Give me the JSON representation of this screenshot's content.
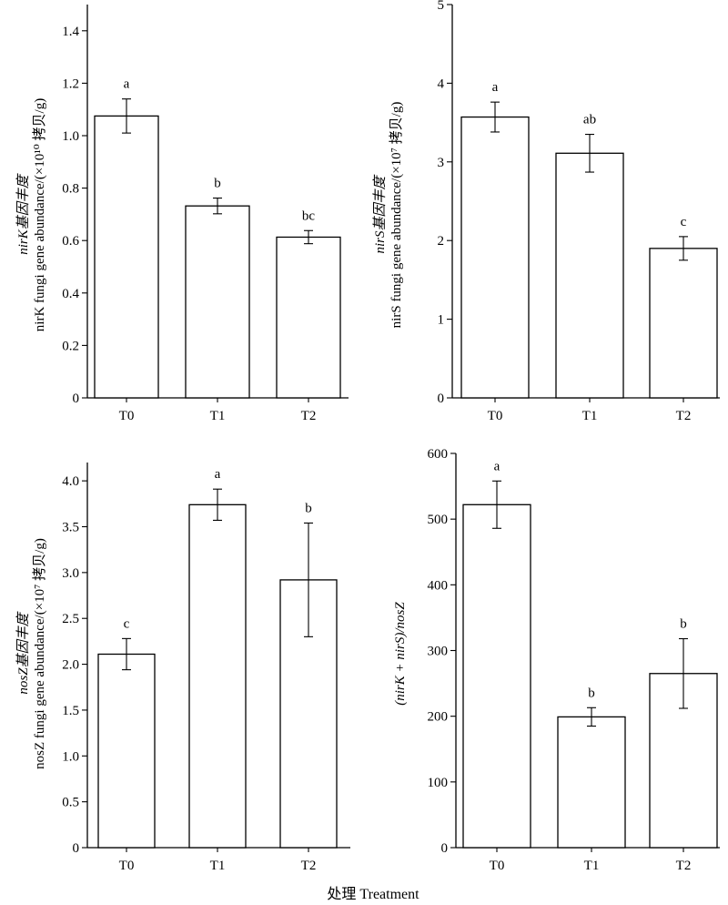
{
  "xlabel": "处理 Treatment",
  "colors": {
    "bar_fill": "#ffffff",
    "stroke": "#000000"
  },
  "chart_data": [
    {
      "type": "bar",
      "ylabel_cn": "nirK基因丰度",
      "ylabel_en": "nirK fungi gene abundance/(×10¹⁰ 拷贝/g)",
      "categories": [
        "T0",
        "T1",
        "T2"
      ],
      "values": [
        1.075,
        0.732,
        0.613
      ],
      "errors": [
        0.065,
        0.03,
        0.025
      ],
      "significance": [
        "a",
        "b",
        "bc"
      ],
      "ylim": [
        0,
        1.5
      ],
      "yticks": [
        "0",
        "0.2",
        "0.4",
        "0.6",
        "0.8",
        "1.0",
        "1.2",
        "1.4"
      ],
      "ytick_values": [
        0,
        0.2,
        0.4,
        0.6,
        0.8,
        1.0,
        1.2,
        1.4
      ],
      "grid": false
    },
    {
      "type": "bar",
      "ylabel_cn": "nirS基因丰度",
      "ylabel_en": "nirS fungi gene abundance/(×10⁷ 拷贝/g)",
      "categories": [
        "T0",
        "T1",
        "T2"
      ],
      "values": [
        3.57,
        3.11,
        1.9
      ],
      "errors": [
        0.19,
        0.24,
        0.15
      ],
      "significance": [
        "a",
        "ab",
        "c"
      ],
      "ylim": [
        0,
        5
      ],
      "yticks": [
        "0",
        "1",
        "2",
        "3",
        "4",
        "5"
      ],
      "ytick_values": [
        0,
        1,
        2,
        3,
        4,
        5
      ],
      "grid": false
    },
    {
      "type": "bar",
      "ylabel_cn": "nosZ基因丰度",
      "ylabel_en": "nosZ fungi gene abundance/(×10⁷ 拷贝/g)",
      "categories": [
        "T0",
        "T1",
        "T2"
      ],
      "values": [
        2.11,
        3.74,
        2.92
      ],
      "errors": [
        0.17,
        0.17,
        0.62
      ],
      "significance": [
        "c",
        "a",
        "b"
      ],
      "ylim": [
        0,
        4.2
      ],
      "yticks": [
        "0",
        "0.5",
        "1.0",
        "1.5",
        "2.0",
        "2.5",
        "3.0",
        "3.5",
        "4.0"
      ],
      "ytick_values": [
        0,
        0.5,
        1.0,
        1.5,
        2.0,
        2.5,
        3.0,
        3.5,
        4.0
      ],
      "grid": false
    },
    {
      "type": "bar",
      "ylabel_cn": "",
      "ylabel_en": "(nirK + nirS)/nosZ",
      "categories": [
        "T0",
        "T1",
        "T2"
      ],
      "values": [
        522,
        199,
        265
      ],
      "errors": [
        36,
        14,
        53
      ],
      "significance": [
        "a",
        "b",
        "b"
      ],
      "ylim": [
        0,
        600
      ],
      "yticks": [
        "0",
        "100",
        "200",
        "300",
        "400",
        "500",
        "600"
      ],
      "ytick_values": [
        0,
        100,
        200,
        300,
        400,
        500,
        600
      ],
      "grid": false
    }
  ]
}
